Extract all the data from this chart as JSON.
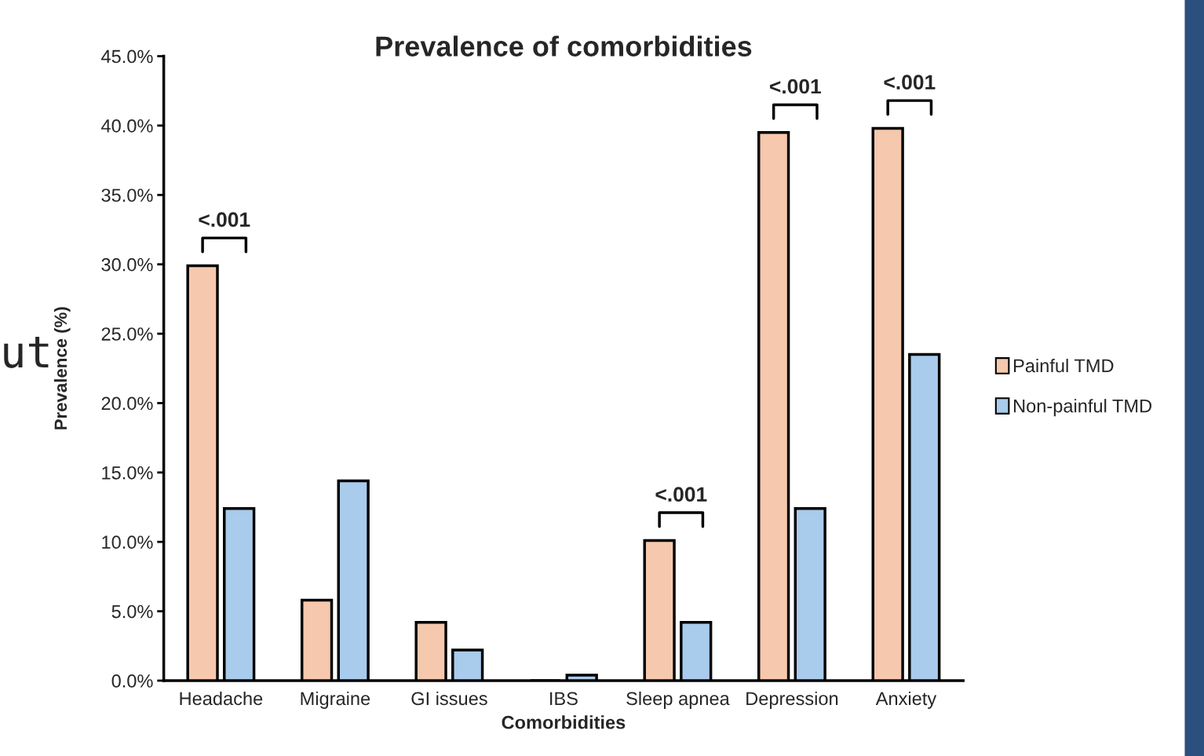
{
  "chart_data": {
    "type": "bar",
    "title": "Prevalence of comorbidities",
    "xlabel": "Comorbidities",
    "ylabel": "Prevalence (%)",
    "categories": [
      "Headache",
      "Migraine",
      "GI issues",
      "IBS",
      "Sleep apnea",
      "Depression",
      "Anxiety"
    ],
    "series": [
      {
        "name": "Painful TMD",
        "color": "#f6c8ad",
        "values": [
          29.9,
          5.8,
          4.2,
          0,
          10.1,
          39.5,
          39.8
        ]
      },
      {
        "name": "Non-painful TMD",
        "color": "#a9cbec",
        "values": [
          12.4,
          14.4,
          2.2,
          0.4,
          4.2,
          12.4,
          23.5
        ]
      }
    ],
    "ylim": [
      0,
      45
    ],
    "yticks": [
      {
        "value": 0,
        "label": "0.0%"
      },
      {
        "value": 5,
        "label": "5.0%"
      },
      {
        "value": 10,
        "label": "10.0%"
      },
      {
        "value": 15,
        "label": "15.0%"
      },
      {
        "value": 20,
        "label": "20.0%"
      },
      {
        "value": 25,
        "label": "25.0%"
      },
      {
        "value": 30,
        "label": "30.0%"
      },
      {
        "value": 35,
        "label": "35.0%"
      },
      {
        "value": 40,
        "label": "40.0%"
      },
      {
        "value": 45,
        "label": "45.0%"
      }
    ],
    "grid": false,
    "legend": "right",
    "annotations": [
      "<.001",
      "<.001",
      "<.001",
      "<.001",
      "ut"
    ]
  }
}
